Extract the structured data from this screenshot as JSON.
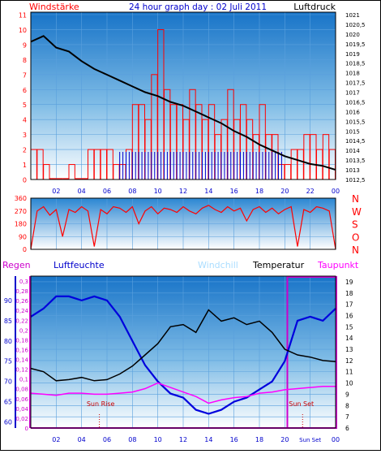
{
  "header": {
    "left_label": "Windstärke",
    "title": "24 hour graph day : 02 Juli 2011",
    "right_label": "Luftdruck"
  },
  "colors": {
    "wind": "#ff0000",
    "gust": "#ff0000",
    "calm": "#0000cc",
    "pressure": "#000000",
    "direction": "#ff0000",
    "humidity": "#0000dd",
    "temperature": "#000000",
    "dewpoint": "#ff00ff",
    "rain": "#cc00cc",
    "windchill": "#aaddff",
    "axis_red": "#ff0000",
    "axis_blue": "#0000cc",
    "axis_black": "#000000",
    "axis_magenta": "#cc00cc"
  },
  "time_labels": [
    "02",
    "04",
    "06",
    "08",
    "10",
    "12",
    "14",
    "16",
    "18",
    "20",
    "22",
    "00"
  ],
  "bottom_time_labels": [
    "02",
    "04",
    "06",
    "08",
    "10",
    "12",
    "14",
    "16",
    "18",
    "20",
    "Sun Set",
    "00"
  ],
  "chart_data": [
    {
      "type": "line",
      "title": "24 hour graph day : 02 Juli 2011",
      "ylabel_left": "Windstärke",
      "ylabel_right": "Luftdruck",
      "left_ticks": [
        "0",
        "1",
        "2",
        "3",
        "4",
        "5",
        "6",
        "7",
        "8",
        "9",
        "10",
        "11"
      ],
      "right_ticks": [
        "1012,5",
        "1013",
        "1013,5",
        "1014",
        "1014,5",
        "1015",
        "1015,5",
        "1016",
        "1016,5",
        "1017",
        "1017,5",
        "1018",
        "1018,5",
        "1019",
        "1019,5",
        "1020",
        "1020,5",
        "1021"
      ],
      "ylim_left": [
        0,
        11
      ],
      "ylim_right": [
        1012.5,
        1021
      ],
      "series": [
        {
          "name": "Windstärke",
          "axis": "left",
          "x": [
            0,
            0.5,
            1,
            1.5,
            2,
            2.5,
            3,
            3.5,
            4,
            4.5,
            5,
            5.5,
            6,
            6.5,
            7,
            7.5,
            8,
            8.5,
            9,
            9.5,
            10,
            10.5,
            11,
            11.5,
            12,
            12.5,
            13,
            13.5,
            14,
            14.5,
            15,
            15.5,
            16,
            16.5,
            17,
            17.5,
            18,
            18.5,
            19,
            19.5,
            20,
            20.5,
            21,
            21.5,
            22,
            22.5,
            23,
            23.5,
            24
          ],
          "values": [
            2,
            2,
            1,
            0,
            0,
            0,
            1,
            0,
            0,
            2,
            2,
            2,
            2,
            1,
            1,
            2,
            5,
            5,
            4,
            7,
            10,
            6,
            5,
            5,
            4,
            6,
            5,
            4,
            5,
            3,
            4,
            6,
            4,
            5,
            4,
            3,
            5,
            3,
            3,
            1,
            1,
            2,
            2,
            3,
            3,
            2,
            3,
            2,
            1
          ]
        },
        {
          "name": "Luftdruck",
          "axis": "right",
          "x": [
            0,
            1,
            2,
            3,
            4,
            5,
            6,
            7,
            8,
            9,
            10,
            11,
            12,
            13,
            14,
            15,
            16,
            17,
            18,
            19,
            20,
            21,
            22,
            23,
            24
          ],
          "values": [
            1019.6,
            1019.9,
            1019.3,
            1019.1,
            1018.6,
            1018.2,
            1017.9,
            1017.6,
            1017.3,
            1017.0,
            1016.8,
            1016.5,
            1016.3,
            1016.0,
            1015.7,
            1015.4,
            1015.0,
            1014.7,
            1014.3,
            1014.0,
            1013.7,
            1013.5,
            1013.3,
            1013.2,
            1013.0
          ]
        }
      ]
    },
    {
      "type": "line",
      "title": "",
      "left_ticks": [
        "0",
        "90",
        "180",
        "270",
        "360"
      ],
      "right_labels": [
        "N",
        "W",
        "S",
        "O",
        "N"
      ],
      "ylim": [
        0,
        360
      ],
      "series": [
        {
          "name": "Windrichtung",
          "x": [
            0,
            0.5,
            1,
            1.5,
            2,
            2.5,
            3,
            3.5,
            4,
            4.5,
            5,
            5.5,
            6,
            6.5,
            7,
            7.5,
            8,
            8.5,
            9,
            9.5,
            10,
            10.5,
            11,
            11.5,
            12,
            12.5,
            13,
            13.5,
            14,
            14.5,
            15,
            15.5,
            16,
            16.5,
            17,
            17.5,
            18,
            18.5,
            19,
            19.5,
            20,
            20.5,
            21,
            21.5,
            22,
            22.5,
            23,
            23.5,
            24
          ],
          "values": [
            0,
            270,
            300,
            240,
            280,
            90,
            280,
            260,
            300,
            270,
            20,
            280,
            250,
            300,
            290,
            260,
            300,
            180,
            270,
            300,
            250,
            290,
            280,
            260,
            300,
            270,
            250,
            290,
            310,
            280,
            260,
            300,
            270,
            290,
            200,
            280,
            300,
            260,
            290,
            250,
            280,
            300,
            20,
            280,
            260,
            300,
            290,
            270,
            0
          ]
        }
      ]
    },
    {
      "type": "line",
      "legend": [
        "Regen",
        "Luftfeuchte",
        "Windchill",
        "Temperatur",
        "Taupunkt"
      ],
      "rain_ticks": [
        "0",
        "0,02",
        "0,04",
        "0,06",
        "0,08",
        "0,1",
        "0,12",
        "0,14",
        "0,16",
        "0,18",
        "0,2",
        "0,22",
        "0,24",
        "0,26",
        "0,28",
        "0,3"
      ],
      "humidity_ticks": [
        "60",
        "65",
        "70",
        "75",
        "80",
        "85",
        "90"
      ],
      "temp_ticks": [
        "6",
        "7",
        "8",
        "9",
        "10",
        "11",
        "12",
        "13",
        "14",
        "15",
        "16",
        "17",
        "18",
        "19"
      ],
      "ylim_humidity": [
        58.5,
        96
      ],
      "ylim_temp": [
        6,
        19.5
      ],
      "annotations": [
        "Sun Rise",
        "Sun Set"
      ],
      "series": [
        {
          "name": "Luftfeuchte",
          "axis": "humidity",
          "x": [
            0,
            1,
            2,
            3,
            4,
            5,
            6,
            7,
            8,
            9,
            10,
            11,
            12,
            13,
            14,
            15,
            16,
            17,
            18,
            19,
            20,
            21,
            22,
            23,
            24
          ],
          "values": [
            86,
            88,
            91,
            91,
            90,
            91,
            90,
            86,
            80,
            74,
            70,
            67,
            66,
            63,
            62,
            63,
            65,
            66,
            68,
            70,
            75,
            85,
            86,
            85,
            88
          ]
        },
        {
          "name": "Temperatur",
          "axis": "temp",
          "x": [
            0,
            1,
            2,
            3,
            4,
            5,
            6,
            7,
            8,
            9,
            10,
            11,
            12,
            13,
            14,
            15,
            16,
            17,
            18,
            19,
            20,
            21,
            22,
            23,
            24
          ],
          "values": [
            11.3,
            11.0,
            10.2,
            10.3,
            10.5,
            10.2,
            10.3,
            10.8,
            11.5,
            12.5,
            13.5,
            15.0,
            15.2,
            14.5,
            16.5,
            15.5,
            15.8,
            15.2,
            15.5,
            14.5,
            13.0,
            12.5,
            12.3,
            12.0,
            11.9
          ]
        },
        {
          "name": "Taupunkt",
          "axis": "temp",
          "x": [
            0,
            1,
            2,
            3,
            4,
            5,
            6,
            7,
            8,
            9,
            10,
            11,
            12,
            13,
            14,
            15,
            16,
            17,
            18,
            19,
            20,
            21,
            22,
            23,
            24
          ],
          "values": [
            9.1,
            9.0,
            8.9,
            9.1,
            9.1,
            9.0,
            9.0,
            9.1,
            9.2,
            9.5,
            10.0,
            9.6,
            9.2,
            8.8,
            8.2,
            8.5,
            8.7,
            8.8,
            9.1,
            9.2,
            9.4,
            9.5,
            9.6,
            9.7,
            9.7
          ]
        },
        {
          "name": "Regen",
          "axis": "rain",
          "x": [
            0,
            24
          ],
          "values": [
            0,
            0
          ]
        }
      ]
    }
  ]
}
